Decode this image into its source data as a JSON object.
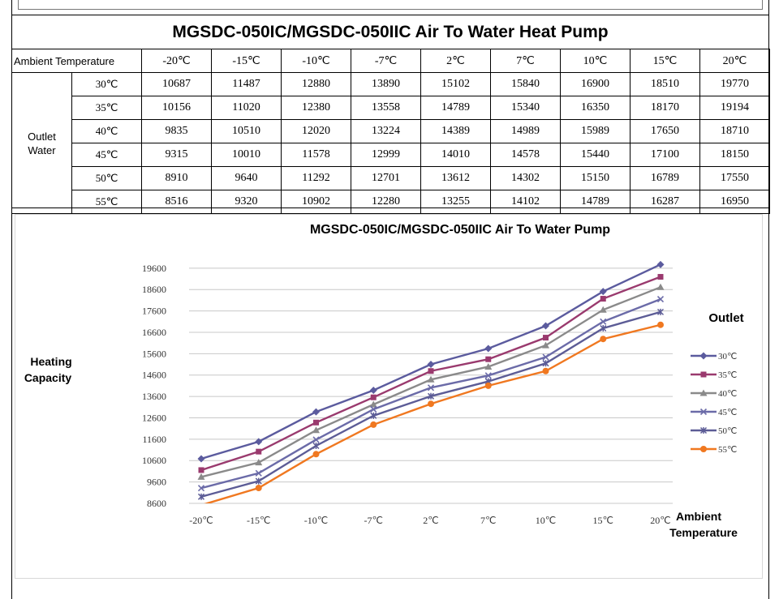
{
  "page_title": "MGSDC-050IC/MGSDC-050IIC Air To Water Heat Pump",
  "table": {
    "corner_label": "Ambient Temperature",
    "group_label_line1": "Outlet",
    "group_label_line2": "Water",
    "ambient_temps": [
      "-20℃",
      "-15℃",
      "-10℃",
      "-7℃",
      "2℃",
      "7℃",
      "10℃",
      "15℃",
      "20℃"
    ],
    "rows": [
      {
        "outlet": "30℃",
        "values": [
          "10687",
          "11487",
          "12880",
          "13890",
          "15102",
          "15840",
          "16900",
          "18510",
          "19770"
        ]
      },
      {
        "outlet": "35℃",
        "values": [
          "10156",
          "11020",
          "12380",
          "13558",
          "14789",
          "15340",
          "16350",
          "18170",
          "19194"
        ]
      },
      {
        "outlet": "40℃",
        "values": [
          "9835",
          "10510",
          "12020",
          "13224",
          "14389",
          "14989",
          "15989",
          "17650",
          "18710"
        ]
      },
      {
        "outlet": "45℃",
        "values": [
          "9315",
          "10010",
          "11578",
          "12999",
          "14010",
          "14578",
          "15440",
          "17100",
          "18150"
        ]
      },
      {
        "outlet": "50℃",
        "values": [
          "8910",
          "9640",
          "11292",
          "12701",
          "13612",
          "14302",
          "15150",
          "16789",
          "17550"
        ]
      },
      {
        "outlet": "55℃",
        "values": [
          "8516",
          "9320",
          "10902",
          "12280",
          "13255",
          "14102",
          "14789",
          "16287",
          "16950"
        ]
      }
    ]
  },
  "chart_data": {
    "type": "line",
    "title": "MGSDC-050IC/MGSDC-050IIC Air To Water Pump",
    "ylabel_line1": "Heating",
    "ylabel_line2": "Capacity",
    "xlabel_line1": "Ambient",
    "xlabel_line2": "Temperature",
    "legend_title": "Outlet",
    "legend_position": "right",
    "grid": true,
    "categories": [
      "-20℃",
      "-15℃",
      "-10℃",
      "-7℃",
      "2℃",
      "7℃",
      "10℃",
      "15℃",
      "20℃"
    ],
    "yticks": [
      8600,
      9600,
      10600,
      11600,
      12600,
      13600,
      14600,
      15600,
      16600,
      17600,
      18600,
      19600
    ],
    "ylim": [
      8600,
      20200
    ],
    "series": [
      {
        "name": "30℃",
        "color": "#5b5b9e",
        "marker": "diamond",
        "values": [
          10687,
          11487,
          12880,
          13890,
          15102,
          15840,
          16900,
          18510,
          19770
        ]
      },
      {
        "name": "35℃",
        "color": "#9a3a6e",
        "marker": "square",
        "values": [
          10156,
          11020,
          12380,
          13558,
          14789,
          15340,
          16350,
          18170,
          19194
        ]
      },
      {
        "name": "40℃",
        "color": "#8a8a8a",
        "marker": "triangle",
        "values": [
          9835,
          10510,
          12020,
          13224,
          14389,
          14989,
          15989,
          17650,
          18710
        ]
      },
      {
        "name": "45℃",
        "color": "#6b6ba8",
        "marker": "x",
        "values": [
          9315,
          10010,
          11578,
          12999,
          14010,
          14578,
          15440,
          17100,
          18150
        ]
      },
      {
        "name": "50℃",
        "color": "#5c5c96",
        "marker": "star",
        "values": [
          8910,
          9640,
          11292,
          12701,
          13612,
          14302,
          15150,
          16789,
          17550
        ]
      },
      {
        "name": "55℃",
        "color": "#f07820",
        "marker": "circle",
        "values": [
          8516,
          9320,
          10902,
          12280,
          13255,
          14102,
          14789,
          16287,
          16950
        ]
      }
    ]
  }
}
